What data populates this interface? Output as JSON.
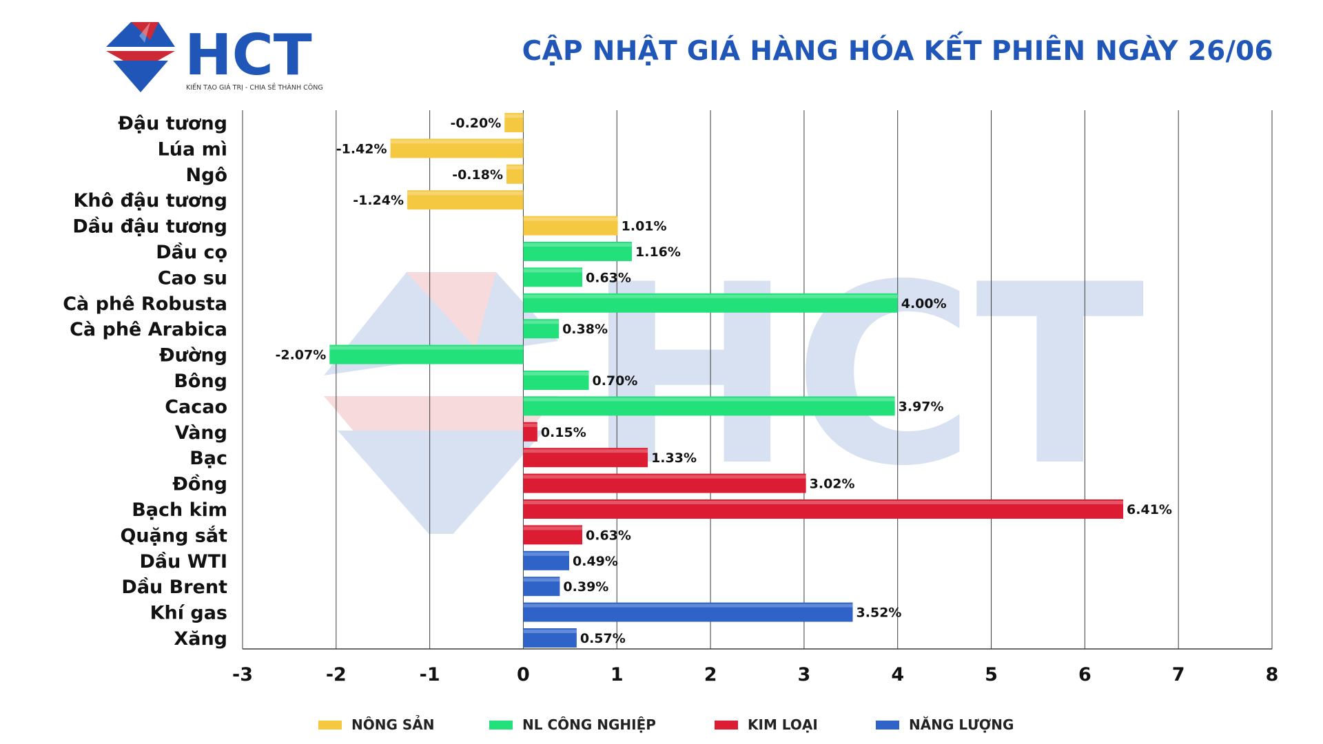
{
  "header": {
    "logo_text": "HCT",
    "logo_tagline": "KIẾN TẠO GIÁ TRỊ - CHIA SẺ THÀNH CÔNG",
    "title": "CẬP NHẬT GIÁ HÀNG HÓA KẾT PHIÊN NGÀY 26/06"
  },
  "colors": {
    "nong_san": "#f5c842",
    "nl_cong_nghiep": "#22e07a",
    "kim_loai": "#dc1c33",
    "nang_luong": "#2f63c8",
    "title": "#1f56b8",
    "logo_blue": "#1f56b8",
    "logo_red": "#cc2a37"
  },
  "legend": [
    {
      "key": "nong_san",
      "label": "NÔNG SẢN"
    },
    {
      "key": "nl_cong_nghiep",
      "label": "NL CÔNG NGHIỆP"
    },
    {
      "key": "kim_loai",
      "label": "KIM LOẠI"
    },
    {
      "key": "nang_luong",
      "label": "NĂNG LƯỢNG"
    }
  ],
  "chart_data": {
    "type": "bar",
    "orientation": "horizontal",
    "xlim": [
      -3,
      8
    ],
    "x_ticks": [
      "-3",
      "-2",
      "-1",
      "0",
      "1",
      "2",
      "3",
      "4",
      "5",
      "6",
      "7",
      "8"
    ],
    "grid": "vertical",
    "legend_position": "bottom",
    "categories": [
      "Đậu tương",
      "Lúa mì",
      "Ngô",
      "Khô đậu tương",
      "Dầu đậu tương",
      "Dầu cọ",
      "Cao su",
      "Cà phê Robusta",
      "Cà phê Arabica",
      "Đường",
      "Bông",
      "Cacao",
      "Vàng",
      "Bạc",
      "Đồng",
      "Bạch kim",
      "Quặng sắt",
      "Dầu WTI",
      "Dầu Brent",
      "Khí gas",
      "Xăng"
    ],
    "values": [
      -0.2,
      -1.42,
      -0.18,
      -1.24,
      1.01,
      1.16,
      0.63,
      4.0,
      0.38,
      -2.07,
      0.7,
      3.97,
      0.15,
      1.33,
      3.02,
      6.41,
      0.63,
      0.49,
      0.39,
      3.52,
      0.57
    ],
    "value_labels": [
      "-0.20%",
      "-1.42%",
      "-0.18%",
      "-1.24%",
      "1.01%",
      "1.16%",
      "0.63%",
      "4.00%",
      "0.38%",
      "-2.07%",
      "0.70%",
      "3.97%",
      "0.15%",
      "1.33%",
      "3.02%",
      "6.41%",
      "0.63%",
      "0.49%",
      "0.39%",
      "3.52%",
      "0.57%"
    ],
    "groups": [
      "nong_san",
      "nong_san",
      "nong_san",
      "nong_san",
      "nong_san",
      "nl_cong_nghiep",
      "nl_cong_nghiep",
      "nl_cong_nghiep",
      "nl_cong_nghiep",
      "nl_cong_nghiep",
      "nl_cong_nghiep",
      "nl_cong_nghiep",
      "kim_loai",
      "kim_loai",
      "kim_loai",
      "kim_loai",
      "kim_loai",
      "nang_luong",
      "nang_luong",
      "nang_luong",
      "nang_luong"
    ]
  }
}
